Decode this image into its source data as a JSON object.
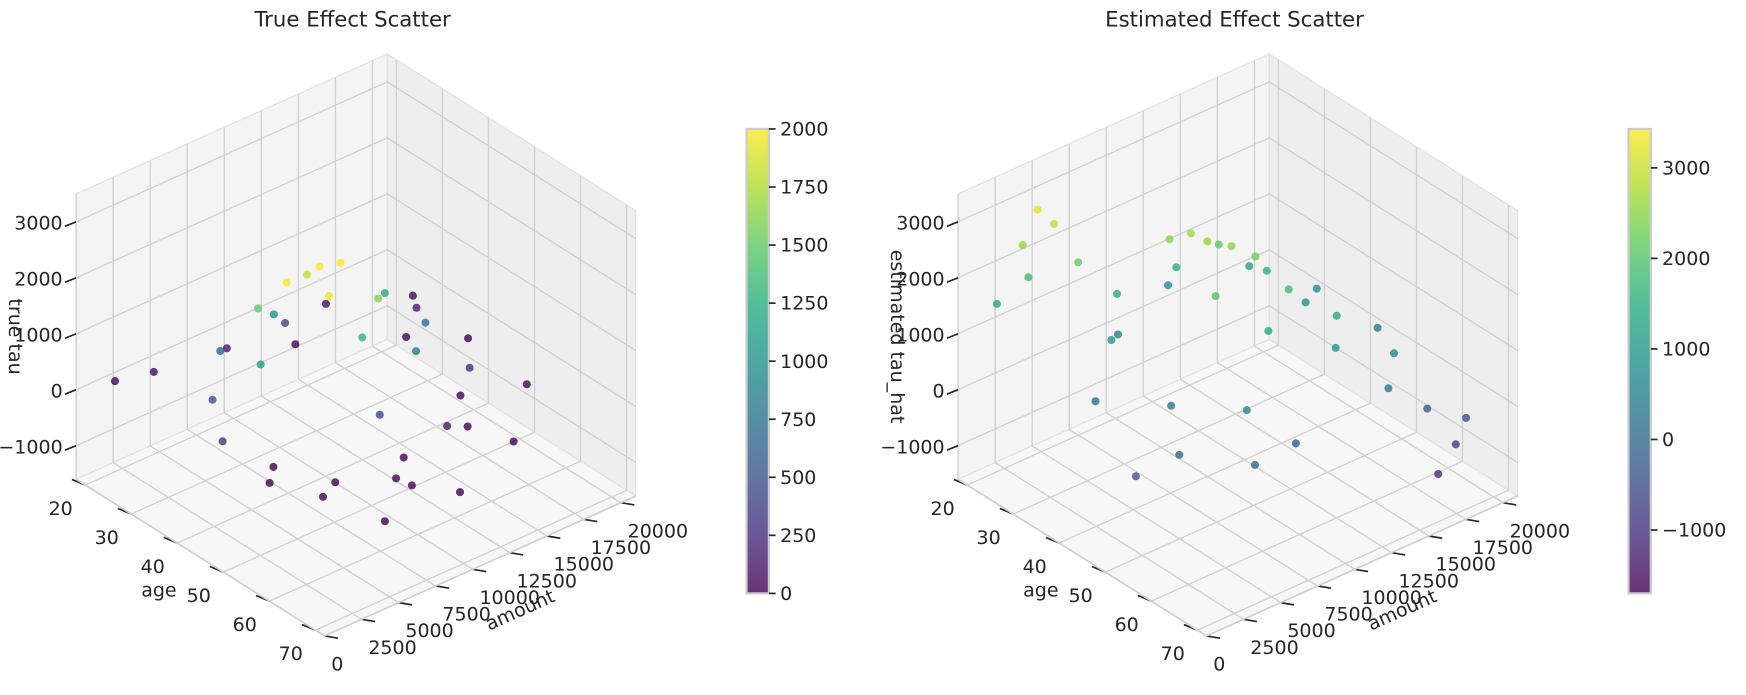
{
  "chart_data": [
    {
      "type": "scatter3d",
      "title": "True Effect Scatter",
      "xlabel": "age",
      "ylabel": "amount",
      "zlabel": "true tau",
      "colormap": "viridis",
      "alpha": 0.8,
      "xlim": [
        18,
        72
      ],
      "ylim": [
        0,
        21000
      ],
      "zlim": [
        -1600,
        3500
      ],
      "xticks": [
        20,
        30,
        40,
        50,
        60,
        70
      ],
      "yticks": [
        0,
        2500,
        5000,
        7500,
        10000,
        12500,
        15000,
        17500,
        20000
      ],
      "zticks": [
        {
          "value": -1000,
          "label": "−1000"
        },
        0,
        1000,
        2000,
        3000
      ],
      "clim": [
        0,
        2000
      ],
      "cticks": [
        0,
        250,
        500,
        750,
        1000,
        1250,
        1500,
        1750,
        2000
      ],
      "x": [
        40,
        40,
        38,
        44,
        36,
        45,
        35,
        48,
        40,
        32,
        42,
        50,
        30,
        44,
        55,
        28,
        38,
        52,
        25,
        60,
        22,
        34,
        65,
        58,
        24,
        45,
        68,
        20,
        62,
        30,
        48,
        55,
        62,
        50,
        35,
        66,
        27,
        58,
        42,
        69,
        52,
        57
      ],
      "y": [
        9600,
        11000,
        8000,
        9000,
        10000,
        12000,
        7000,
        10000,
        14000,
        9000,
        5000,
        13000,
        6000,
        15500,
        9000,
        11000,
        3000,
        16000,
        8000,
        12000,
        4000,
        18000,
        7000,
        18000,
        15000,
        1500,
        14000,
        2000,
        3000,
        19000,
        4000,
        6000,
        9000,
        16000,
        17000,
        11000,
        12000,
        14000,
        19000,
        5000,
        2500,
        10000
      ],
      "z": [
        2200,
        2100,
        2000,
        1950,
        1800,
        1600,
        1500,
        1300,
        1200,
        1000,
        1100,
        800,
        600,
        700,
        400,
        400,
        500,
        250,
        150,
        100,
        50,
        150,
        20,
        30,
        60,
        300,
        0,
        20,
        10,
        40,
        -300,
        -450,
        -500,
        -350,
        -200,
        -650,
        -150,
        -250,
        -100,
        -300,
        -200,
        -380
      ]
    },
    {
      "type": "scatter3d",
      "title": "Estimated Effect Scatter",
      "xlabel": "age",
      "ylabel": "amount",
      "zlabel": "estimated tau_hat",
      "colormap": "viridis",
      "alpha": 0.8,
      "xlim": [
        18,
        72
      ],
      "ylim": [
        0,
        21000
      ],
      "zlim": [
        -1600,
        3500
      ],
      "xticks": [
        20,
        30,
        40,
        50,
        60,
        70
      ],
      "yticks": [
        0,
        2500,
        5000,
        7500,
        10000,
        12500,
        15000,
        17500,
        20000
      ],
      "zticks": [
        {
          "value": -1000,
          "label": "−1000"
        },
        0,
        1000,
        2000,
        3000
      ],
      "clim": [
        -1700,
        3430
      ],
      "cticks": [
        {
          "value": -1000,
          "label": "−1000"
        },
        0,
        1000,
        2000,
        3000
      ],
      "x": [
        20,
        22,
        24,
        25,
        26,
        28,
        30,
        32,
        35,
        38,
        40,
        42,
        44,
        36,
        45,
        48,
        40,
        50,
        52,
        55,
        33,
        30,
        58,
        60,
        62,
        65,
        66,
        64,
        27,
        35,
        45,
        50,
        55,
        42,
        38,
        48,
        56,
        60,
        25,
        47
      ],
      "y": [
        2000,
        3500,
        2500,
        3200,
        4000,
        5000,
        7000,
        6000,
        9000,
        9500,
        10000,
        11000,
        12000,
        12000,
        9000,
        13000,
        14000,
        11000,
        15000,
        14000,
        15000,
        11000,
        17000,
        16000,
        18000,
        19000,
        17500,
        20000,
        8000,
        4000,
        6000,
        5000,
        8000,
        16000,
        18000,
        19000,
        11000,
        7000,
        12000,
        3000
      ],
      "z": [
        1400,
        1800,
        2600,
        3200,
        2900,
        2200,
        1500,
        900,
        2500,
        2700,
        2600,
        2500,
        2300,
        2100,
        2000,
        1800,
        1600,
        1400,
        1300,
        1000,
        1200,
        1500,
        700,
        300,
        -200,
        -800,
        -1100,
        -500,
        500,
        200,
        400,
        -100,
        600,
        900,
        700,
        400,
        -300,
        0,
        800,
        -400
      ]
    }
  ]
}
